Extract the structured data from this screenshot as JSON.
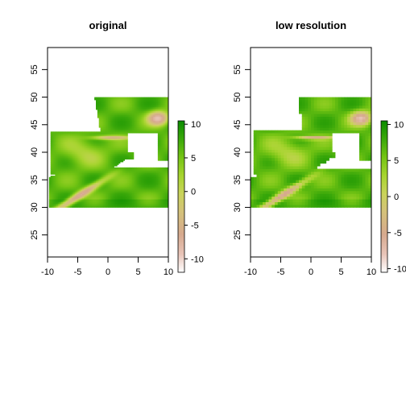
{
  "chart_data": [
    {
      "type": "heatmap",
      "title": "original",
      "xlabel": "",
      "ylabel": "",
      "xlim": [
        -10,
        10
      ],
      "ylim": [
        21,
        59
      ],
      "raster_extent": {
        "x": [
          -10,
          10
        ],
        "y": [
          30,
          50
        ]
      },
      "x_ticks": [
        -10,
        -5,
        0,
        5,
        10
      ],
      "y_ticks": [
        25,
        30,
        35,
        40,
        45,
        50,
        55
      ],
      "legend": {
        "placement": "right",
        "range": [
          -12,
          10.5
        ],
        "ticks": [
          10,
          5,
          0,
          -5,
          -10
        ]
      },
      "resolution": "fine",
      "colors": [
        "#ffffff",
        "#e8c4b8",
        "#d6a98e",
        "#d4c27a",
        "#c9d35a",
        "#a6d42e",
        "#74c414",
        "#3aa80a",
        "#0b8c00"
      ]
    },
    {
      "type": "heatmap",
      "title": "low resolution",
      "xlabel": "",
      "ylabel": "",
      "xlim": [
        -10,
        10
      ],
      "ylim": [
        21,
        59
      ],
      "raster_extent": {
        "x": [
          -10,
          10
        ],
        "y": [
          30,
          50
        ]
      },
      "x_ticks": [
        -10,
        -5,
        0,
        5,
        10
      ],
      "y_ticks": [
        25,
        30,
        35,
        40,
        45,
        50,
        55
      ],
      "legend": {
        "placement": "right",
        "range": [
          -10.5,
          10.5
        ],
        "ticks": [
          10,
          5,
          0,
          -5,
          -10
        ]
      },
      "resolution": "coarse",
      "colors": [
        "#ffffff",
        "#e8c4b8",
        "#d6a98e",
        "#d4c27a",
        "#c9d35a",
        "#a6d42e",
        "#74c414",
        "#3aa80a",
        "#0b8c00"
      ]
    }
  ]
}
